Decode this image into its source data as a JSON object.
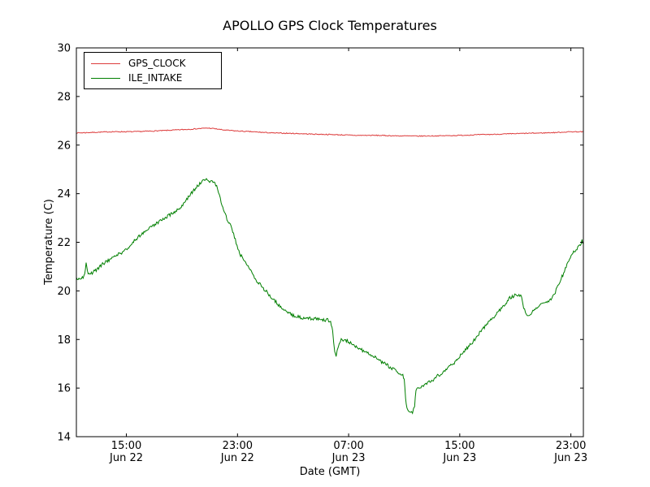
{
  "chart_data": {
    "type": "line",
    "title": "APOLLO GPS Clock Temperatures",
    "xlabel": "Date (GMT)",
    "ylabel": "Temperature (C)",
    "x_unit": "hours since Jun 22 00:00 GMT",
    "xlim": [
      11.4,
      47.9
    ],
    "ylim": [
      14,
      30
    ],
    "grid": false,
    "legend_position": "upper left",
    "yticks": [
      {
        "value": 14,
        "label": "14"
      },
      {
        "value": 16,
        "label": "16"
      },
      {
        "value": 18,
        "label": "18"
      },
      {
        "value": 20,
        "label": "20"
      },
      {
        "value": 22,
        "label": "22"
      },
      {
        "value": 24,
        "label": "24"
      },
      {
        "value": 26,
        "label": "26"
      },
      {
        "value": 28,
        "label": "28"
      },
      {
        "value": 30,
        "label": "30"
      }
    ],
    "xticks": [
      {
        "value": 15,
        "time": "15:00",
        "date": "Jun 22"
      },
      {
        "value": 23,
        "time": "23:00",
        "date": "Jun 22"
      },
      {
        "value": 31,
        "time": "07:00",
        "date": "Jun 23"
      },
      {
        "value": 39,
        "time": "15:00",
        "date": "Jun 23"
      },
      {
        "value": 47,
        "time": "23:00",
        "date": "Jun 23"
      }
    ],
    "series": [
      {
        "name": "GPS_CLOCK",
        "color": "#dd3c3c",
        "noise": 0.018,
        "points": [
          [
            11.4,
            26.5
          ],
          [
            12.5,
            26.52
          ],
          [
            14.0,
            26.55
          ],
          [
            15.5,
            26.55
          ],
          [
            17.0,
            26.58
          ],
          [
            18.5,
            26.62
          ],
          [
            19.5,
            26.65
          ],
          [
            20.3,
            26.68
          ],
          [
            20.8,
            26.7
          ],
          [
            21.3,
            26.68
          ],
          [
            22.0,
            26.62
          ],
          [
            23.0,
            26.58
          ],
          [
            24.0,
            26.55
          ],
          [
            25.5,
            26.5
          ],
          [
            27.0,
            26.48
          ],
          [
            28.5,
            26.45
          ],
          [
            30.0,
            26.43
          ],
          [
            31.5,
            26.4
          ],
          [
            33.0,
            26.4
          ],
          [
            34.5,
            26.38
          ],
          [
            36.0,
            26.37
          ],
          [
            37.5,
            26.38
          ],
          [
            39.0,
            26.4
          ],
          [
            40.5,
            26.43
          ],
          [
            42.0,
            26.45
          ],
          [
            43.5,
            26.48
          ],
          [
            45.0,
            26.5
          ],
          [
            46.0,
            26.52
          ],
          [
            47.0,
            26.55
          ],
          [
            47.9,
            26.55
          ]
        ]
      },
      {
        "name": "ILE_INTAKE",
        "color": "#007f00",
        "noise": 0.07,
        "points": [
          [
            11.4,
            20.5
          ],
          [
            11.7,
            20.55
          ],
          [
            11.95,
            20.6
          ],
          [
            12.1,
            21.1
          ],
          [
            12.25,
            20.65
          ],
          [
            12.6,
            20.75
          ],
          [
            13.0,
            20.95
          ],
          [
            13.4,
            21.15
          ],
          [
            13.8,
            21.3
          ],
          [
            14.2,
            21.45
          ],
          [
            14.6,
            21.55
          ],
          [
            15.0,
            21.7
          ],
          [
            15.4,
            21.95
          ],
          [
            15.8,
            22.2
          ],
          [
            16.2,
            22.4
          ],
          [
            16.6,
            22.55
          ],
          [
            17.0,
            22.7
          ],
          [
            17.4,
            22.85
          ],
          [
            17.8,
            23.0
          ],
          [
            18.2,
            23.15
          ],
          [
            18.6,
            23.3
          ],
          [
            19.0,
            23.5
          ],
          [
            19.4,
            23.8
          ],
          [
            19.8,
            24.1
          ],
          [
            20.1,
            24.3
          ],
          [
            20.4,
            24.5
          ],
          [
            20.7,
            24.6
          ],
          [
            21.0,
            24.5
          ],
          [
            21.3,
            24.45
          ],
          [
            21.5,
            24.3
          ],
          [
            21.7,
            23.9
          ],
          [
            22.0,
            23.3
          ],
          [
            22.3,
            22.9
          ],
          [
            22.6,
            22.55
          ],
          [
            22.9,
            22.0
          ],
          [
            23.1,
            21.6
          ],
          [
            23.4,
            21.3
          ],
          [
            23.7,
            21.1
          ],
          [
            24.0,
            20.75
          ],
          [
            24.4,
            20.4
          ],
          [
            24.8,
            20.15
          ],
          [
            25.2,
            19.9
          ],
          [
            25.6,
            19.65
          ],
          [
            26.0,
            19.4
          ],
          [
            26.4,
            19.2
          ],
          [
            26.8,
            19.05
          ],
          [
            27.2,
            18.95
          ],
          [
            27.6,
            18.9
          ],
          [
            28.0,
            18.9
          ],
          [
            28.4,
            18.85
          ],
          [
            28.8,
            18.85
          ],
          [
            29.2,
            18.8
          ],
          [
            29.5,
            18.8
          ],
          [
            29.7,
            18.75
          ],
          [
            29.85,
            18.3
          ],
          [
            30.0,
            17.5
          ],
          [
            30.1,
            17.3
          ],
          [
            30.25,
            17.75
          ],
          [
            30.4,
            17.95
          ],
          [
            30.6,
            18.0
          ],
          [
            30.9,
            17.95
          ],
          [
            31.2,
            17.85
          ],
          [
            31.6,
            17.7
          ],
          [
            32.0,
            17.55
          ],
          [
            32.4,
            17.45
          ],
          [
            32.8,
            17.3
          ],
          [
            33.2,
            17.15
          ],
          [
            33.6,
            17.0
          ],
          [
            34.0,
            16.85
          ],
          [
            34.4,
            16.7
          ],
          [
            34.7,
            16.6
          ],
          [
            34.9,
            16.55
          ],
          [
            35.0,
            16.4
          ],
          [
            35.1,
            15.6
          ],
          [
            35.2,
            15.2
          ],
          [
            35.4,
            15.05
          ],
          [
            35.6,
            15.0
          ],
          [
            35.75,
            15.3
          ],
          [
            35.85,
            15.95
          ],
          [
            36.0,
            16.0
          ],
          [
            36.2,
            16.05
          ],
          [
            36.5,
            16.15
          ],
          [
            36.8,
            16.25
          ],
          [
            37.1,
            16.35
          ],
          [
            37.4,
            16.5
          ],
          [
            37.7,
            16.6
          ],
          [
            38.0,
            16.75
          ],
          [
            38.3,
            16.9
          ],
          [
            38.6,
            17.05
          ],
          [
            39.0,
            17.3
          ],
          [
            39.4,
            17.55
          ],
          [
            39.8,
            17.8
          ],
          [
            40.2,
            18.1
          ],
          [
            40.6,
            18.4
          ],
          [
            41.0,
            18.65
          ],
          [
            41.4,
            18.9
          ],
          [
            41.8,
            19.15
          ],
          [
            42.2,
            19.4
          ],
          [
            42.6,
            19.7
          ],
          [
            42.9,
            19.8
          ],
          [
            43.2,
            19.85
          ],
          [
            43.45,
            19.8
          ],
          [
            43.6,
            19.3
          ],
          [
            43.8,
            19.05
          ],
          [
            44.0,
            19.0
          ],
          [
            44.2,
            19.1
          ],
          [
            44.5,
            19.3
          ],
          [
            44.8,
            19.4
          ],
          [
            45.1,
            19.5
          ],
          [
            45.4,
            19.6
          ],
          [
            45.7,
            19.75
          ],
          [
            46.0,
            20.1
          ],
          [
            46.3,
            20.5
          ],
          [
            46.6,
            20.9
          ],
          [
            46.9,
            21.3
          ],
          [
            47.2,
            21.6
          ],
          [
            47.5,
            21.8
          ],
          [
            47.7,
            21.9
          ],
          [
            47.8,
            22.05
          ],
          [
            47.9,
            21.95
          ]
        ]
      }
    ]
  }
}
